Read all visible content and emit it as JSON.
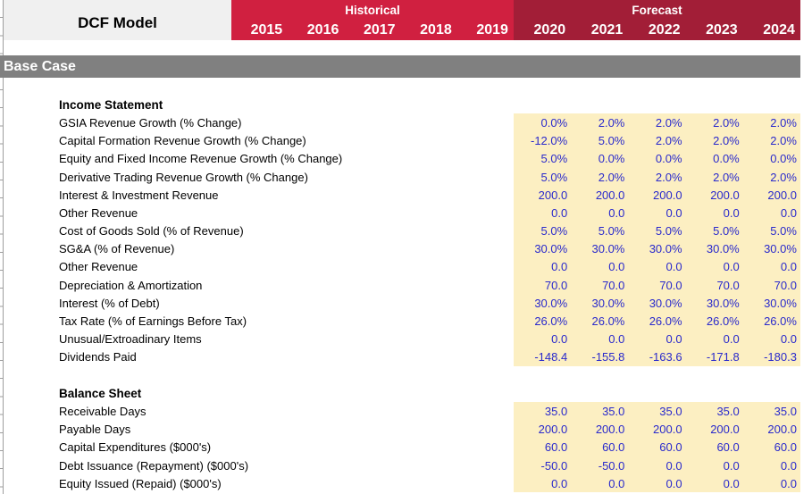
{
  "header": {
    "model_title": "DCF Model",
    "historical_label": "Historical",
    "forecast_label": "Forecast",
    "historical_years": [
      "2015",
      "2016",
      "2017",
      "2018",
      "2019"
    ],
    "forecast_years": [
      "2020",
      "2021",
      "2022",
      "2023",
      "2024"
    ]
  },
  "banner": {
    "label": "Base Case"
  },
  "colors": {
    "historical_red": "#d02040",
    "forecast_red": "#a21e37",
    "banner_gray": "#808080",
    "title_cell_gray": "#f0f0f0",
    "input_cell_yellow": "#fcefc2",
    "input_text_blue": "#2929cc"
  },
  "sections": [
    {
      "title": "Income Statement",
      "rows": [
        {
          "label": "GSIA Revenue Growth (% Change)",
          "values": [
            "0.0%",
            "2.0%",
            "2.0%",
            "2.0%",
            "2.0%"
          ]
        },
        {
          "label": "Capital Formation Revenue Growth (% Change)",
          "values": [
            "-12.0%",
            "5.0%",
            "2.0%",
            "2.0%",
            "2.0%"
          ]
        },
        {
          "label": "Equity and Fixed Income Revenue Growth (% Change)",
          "values": [
            "5.0%",
            "0.0%",
            "0.0%",
            "0.0%",
            "0.0%"
          ]
        },
        {
          "label": "Derivative Trading Revenue Growth (% Change)",
          "values": [
            "5.0%",
            "2.0%",
            "2.0%",
            "2.0%",
            "2.0%"
          ]
        },
        {
          "label": "Interest & Investment Revenue",
          "values": [
            "200.0",
            "200.0",
            "200.0",
            "200.0",
            "200.0"
          ]
        },
        {
          "label": "Other Revenue",
          "values": [
            "0.0",
            "0.0",
            "0.0",
            "0.0",
            "0.0"
          ]
        },
        {
          "label": "Cost of Goods Sold (% of Revenue)",
          "values": [
            "5.0%",
            "5.0%",
            "5.0%",
            "5.0%",
            "5.0%"
          ]
        },
        {
          "label": "SG&A (% of Revenue)",
          "values": [
            "30.0%",
            "30.0%",
            "30.0%",
            "30.0%",
            "30.0%"
          ]
        },
        {
          "label": "Other Revenue",
          "values": [
            "0.0",
            "0.0",
            "0.0",
            "0.0",
            "0.0"
          ]
        },
        {
          "label": "Depreciation & Amortization",
          "values": [
            "70.0",
            "70.0",
            "70.0",
            "70.0",
            "70.0"
          ]
        },
        {
          "label": "Interest (% of Debt)",
          "values": [
            "30.0%",
            "30.0%",
            "30.0%",
            "30.0%",
            "30.0%"
          ]
        },
        {
          "label": "Tax Rate (% of Earnings Before Tax)",
          "values": [
            "26.0%",
            "26.0%",
            "26.0%",
            "26.0%",
            "26.0%"
          ]
        },
        {
          "label": "Unusual/Extroadinary Items",
          "values": [
            "0.0",
            "0.0",
            "0.0",
            "0.0",
            "0.0"
          ]
        },
        {
          "label": "Dividends Paid",
          "values": [
            "-148.4",
            "-155.8",
            "-163.6",
            "-171.8",
            "-180.3"
          ]
        }
      ]
    },
    {
      "title": "Balance Sheet",
      "rows": [
        {
          "label": "Receivable Days",
          "values": [
            "35.0",
            "35.0",
            "35.0",
            "35.0",
            "35.0"
          ]
        },
        {
          "label": "Payable Days",
          "values": [
            "200.0",
            "200.0",
            "200.0",
            "200.0",
            "200.0"
          ]
        },
        {
          "label": "Capital Expenditures ($000's)",
          "values": [
            "60.0",
            "60.0",
            "60.0",
            "60.0",
            "60.0"
          ]
        },
        {
          "label": "Debt Issuance (Repayment) ($000's)",
          "values": [
            "-50.0",
            "-50.0",
            "0.0",
            "0.0",
            "0.0"
          ]
        },
        {
          "label": "Equity Issued (Repaid) ($000's)",
          "values": [
            "0.0",
            "0.0",
            "0.0",
            "0.0",
            "0.0"
          ]
        }
      ]
    }
  ]
}
